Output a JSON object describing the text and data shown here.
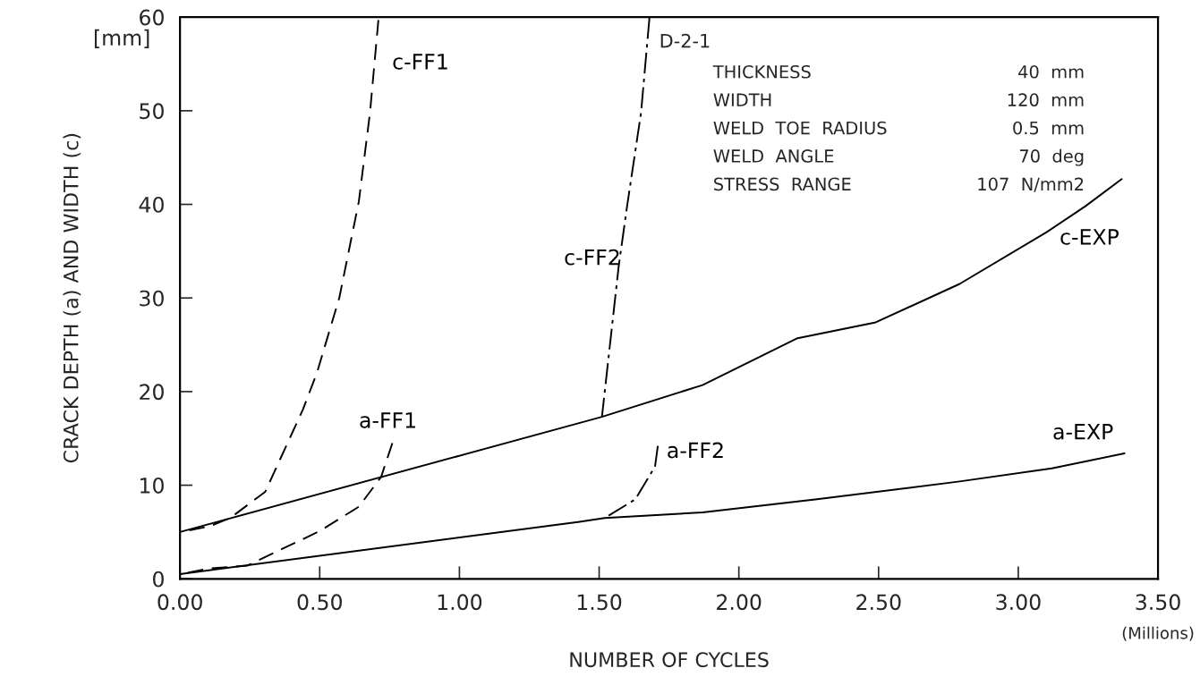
{
  "chart_data": {
    "type": "line",
    "xlabel": "NUMBER OF CYCLES",
    "ylabel": "CRACK DEPTH (a) AND WIDTH (c)",
    "xlim": [
      0,
      3.5
    ],
    "ylim": [
      0,
      60
    ],
    "xticks": [
      {
        "value": 0,
        "label": "0.00"
      },
      {
        "value": 0.5,
        "label": "0.50"
      },
      {
        "value": 1,
        "label": "1.00"
      },
      {
        "value": 1.5,
        "label": "1.50"
      },
      {
        "value": 2,
        "label": "2.00"
      },
      {
        "value": 2.5,
        "label": "2.50"
      },
      {
        "value": 3,
        "label": "3.00"
      },
      {
        "value": 3.5,
        "label": "3.50"
      }
    ],
    "yticks": [
      0,
      10,
      20,
      30,
      40,
      50,
      60
    ],
    "grid": false,
    "legend": false,
    "marker": "none",
    "series": [
      {
        "name": "c-EXP",
        "color": "#000000",
        "line_style": "solid",
        "x": [
          0,
          1.51,
          1.87,
          2.21,
          2.49,
          2.79,
          3.1,
          3.24,
          3.37
        ],
        "values": [
          5.0,
          17.3,
          20.7,
          25.7,
          27.4,
          31.5,
          37.0,
          39.8,
          42.7
        ]
      },
      {
        "name": "a-EXP",
        "color": "#000000",
        "line_style": "solid",
        "x": [
          0,
          1.43,
          1.52,
          1.87,
          2.28,
          2.79,
          3.12,
          3.38
        ],
        "values": [
          0.5,
          6.1,
          6.5,
          7.1,
          8.5,
          10.4,
          11.8,
          13.4
        ]
      },
      {
        "name": "c-FF1",
        "color": "#000000",
        "line_style": "dashed",
        "x": [
          0,
          0.105,
          0.18,
          0.305,
          0.44,
          0.49,
          0.57,
          0.64,
          0.68,
          0.71
        ],
        "values": [
          5.0,
          5.6,
          6.5,
          9.3,
          18.1,
          22.0,
          30.0,
          40.3,
          49.8,
          59.7
        ]
      },
      {
        "name": "a-FF1",
        "color": "#000000",
        "line_style": "dashed",
        "x": [
          0,
          0.105,
          0.24,
          0.5,
          0.64,
          0.72,
          0.76
        ],
        "values": [
          0.5,
          1.1,
          1.4,
          5.1,
          7.7,
          10.9,
          14.5
        ]
      },
      {
        "name": "c-FF2",
        "color": "#000000",
        "line_style": "dashdot",
        "x": [
          1.51,
          1.57,
          1.6,
          1.65,
          1.68
        ],
        "values": [
          17.3,
          33.4,
          39.8,
          49.8,
          59.9
        ]
      },
      {
        "name": "a-FF2",
        "color": "#000000",
        "line_style": "dashdot",
        "x": [
          1.52,
          1.63,
          1.7,
          1.71
        ],
        "values": [
          6.5,
          8.5,
          12.0,
          14.2
        ]
      }
    ],
    "annotations": [
      "D-2-1",
      "THICKNESS",
      "40  mm",
      "WIDTH",
      "120  mm",
      "WELD  TOE  RADIUS",
      "0.5  mm",
      "WELD  ANGLE",
      "70  deg",
      "STRESS  RANGE",
      "107  N/mm2",
      "[mm]",
      "(Millions)"
    ]
  }
}
